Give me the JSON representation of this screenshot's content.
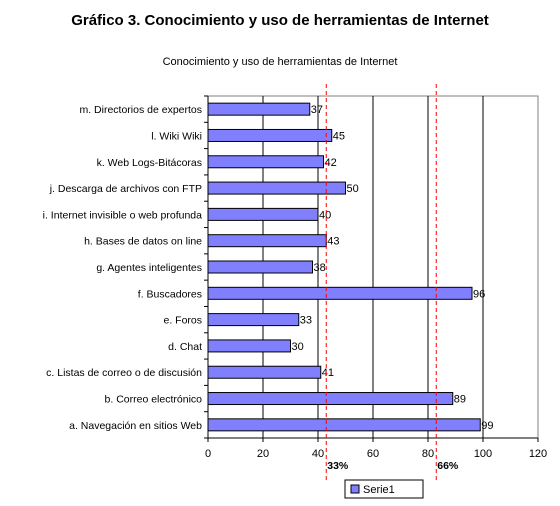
{
  "figure_title": "Gráfico 3. Conocimiento y uso de herramientas de Internet",
  "chart_data": {
    "type": "bar",
    "orientation": "horizontal",
    "title": "Conocimiento y uso de herramientas de Internet",
    "categories": [
      "m. Directorios de expertos",
      "l. Wiki Wiki",
      "k. Web Logs-Bitácoras",
      "j. Descarga de archivos con FTP",
      "i. Internet invisible o web profunda",
      "h. Bases de datos  on line",
      "g.  Agentes inteligentes",
      "f. Buscadores",
      "e. Foros",
      "d. Chat",
      "c. Listas de correo o de discusión",
      "b. Correo electrónico",
      "a. Navegación en sitios Web"
    ],
    "series": [
      {
        "name": "Serie1",
        "values": [
          37,
          45,
          42,
          50,
          40,
          43,
          38,
          96,
          33,
          30,
          41,
          89,
          99
        ]
      }
    ],
    "xlim": [
      0,
      120
    ],
    "xticks": [
      0,
      20,
      40,
      60,
      80,
      100,
      120
    ],
    "grid": true,
    "reference_lines": [
      {
        "value": 43,
        "label": "33%"
      },
      {
        "value": 83,
        "label": "66%"
      }
    ],
    "legend": "bottom-right",
    "colors": {
      "bar": "#8080ff",
      "bar_border": "#000000",
      "reference": "#ff0000"
    }
  }
}
